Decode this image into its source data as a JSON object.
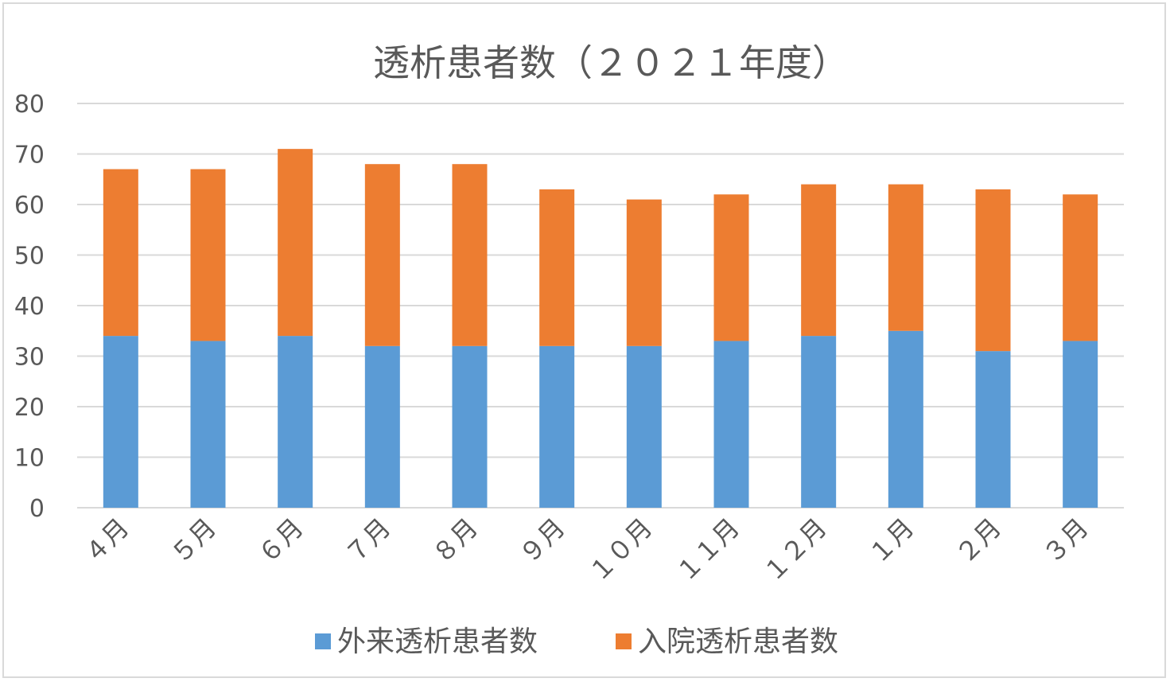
{
  "chart_data": {
    "type": "bar",
    "stacked": true,
    "title": "透析患者数（２０２１年度）",
    "categories": [
      "４月",
      "５月",
      "６月",
      "７月",
      "８月",
      "９月",
      "１０月",
      "１１月",
      "１２月",
      "１月",
      "２月",
      "３月"
    ],
    "series": [
      {
        "name": "外来透析患者数",
        "color": "#5b9bd5",
        "values": [
          34,
          33,
          34,
          32,
          32,
          32,
          32,
          33,
          34,
          35,
          31,
          33
        ]
      },
      {
        "name": "入院透析患者数",
        "color": "#ed7d31",
        "values": [
          33,
          34,
          37,
          36,
          36,
          31,
          29,
          29,
          30,
          29,
          32,
          29
        ]
      }
    ],
    "ylim": [
      0,
      80
    ],
    "yticks": [
      0,
      10,
      20,
      30,
      40,
      50,
      60,
      70,
      80
    ],
    "grid": true,
    "legend": "bottom"
  }
}
